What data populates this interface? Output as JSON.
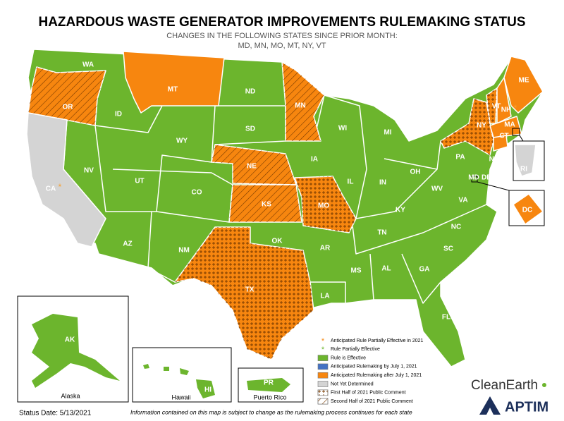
{
  "title": "HAZARDOUS WASTE GENERATOR IMPROVEMENTS RULEMAKING STATUS",
  "subtitle": [
    "CHANGES IN THE FOLLOWING STATES SINCE PRIOR MONTH:",
    "MD, MN, MO, MT, NY, VT"
  ],
  "states": [
    {
      "label": "WA",
      "color": "#6cb52d"
    },
    {
      "label": "OR",
      "color": "#f7860f",
      "pattern": "hatch"
    },
    {
      "label": "CA",
      "color": "#d4d4d4",
      "symbol": "*"
    },
    {
      "label": "ID",
      "color": "#6cb52d"
    },
    {
      "label": "NV",
      "color": "#6cb52d"
    },
    {
      "label": "MT",
      "color": "#f7860f"
    },
    {
      "label": "WY",
      "color": "#6cb52d"
    },
    {
      "label": "UT",
      "color": "#6cb52d"
    },
    {
      "label": "AZ",
      "color": "#6cb52d"
    },
    {
      "label": "CO",
      "color": "#6cb52d"
    },
    {
      "label": "NM",
      "color": "#6cb52d"
    },
    {
      "label": "ND",
      "color": "#6cb52d"
    },
    {
      "label": "SD",
      "color": "#6cb52d"
    },
    {
      "label": "NE",
      "color": "#f7860f",
      "pattern": "hatch"
    },
    {
      "label": "KS",
      "color": "#f7860f",
      "pattern": "hatch"
    },
    {
      "label": "OK",
      "color": "#6cb52d"
    },
    {
      "label": "TX",
      "color": "#f7860f",
      "pattern": "dots"
    },
    {
      "label": "MN",
      "color": "#f7860f",
      "pattern": "hatch"
    },
    {
      "label": "IA",
      "color": "#6cb52d"
    },
    {
      "label": "MO",
      "color": "#f7860f",
      "pattern": "dots"
    },
    {
      "label": "AR",
      "color": "#6cb52d"
    },
    {
      "label": "LA",
      "color": "#6cb52d"
    },
    {
      "label": "WI",
      "color": "#6cb52d"
    },
    {
      "label": "IL",
      "color": "#6cb52d"
    },
    {
      "label": "MS",
      "color": "#6cb52d"
    },
    {
      "label": "MI",
      "color": "#6cb52d"
    },
    {
      "label": "IN",
      "color": "#6cb52d"
    },
    {
      "label": "KY",
      "color": "#6cb52d"
    },
    {
      "label": "TN",
      "color": "#6cb52d"
    },
    {
      "label": "AL",
      "color": "#6cb52d"
    },
    {
      "label": "OH",
      "color": "#6cb52d"
    },
    {
      "label": "GA",
      "color": "#6cb52d"
    },
    {
      "label": "FL",
      "color": "#6cb52d"
    },
    {
      "label": "SC",
      "color": "#6cb52d"
    },
    {
      "label": "NC",
      "color": "#6cb52d"
    },
    {
      "label": "VA",
      "color": "#6cb52d"
    },
    {
      "label": "WV",
      "color": "#6cb52d"
    },
    {
      "label": "PA",
      "color": "#6cb52d"
    },
    {
      "label": "NY",
      "color": "#f7860f",
      "pattern": "dots"
    },
    {
      "label": "VT",
      "color": "#f7860f",
      "pattern": "dots"
    },
    {
      "label": "NH",
      "color": "#f7860f",
      "symbol": "*"
    },
    {
      "label": "ME",
      "color": "#f7860f"
    },
    {
      "label": "MA",
      "color": "#f7860f"
    },
    {
      "label": "CT",
      "color": "#f7860f"
    },
    {
      "label": "RI",
      "color": "#d4d4d4"
    },
    {
      "label": "NJ",
      "color": "#6cb52d"
    },
    {
      "label": "DE",
      "color": "#6cb52d"
    },
    {
      "label": "MD",
      "color": "#6cb52d"
    },
    {
      "label": "DC",
      "color": "#f7860f"
    },
    {
      "label": "AK",
      "color": "#6cb52d"
    },
    {
      "label": "HI",
      "color": "#6cb52d"
    },
    {
      "label": "PR",
      "color": "#6cb52d"
    }
  ],
  "insets": [
    "Alaska",
    "Hawaii",
    "Puerto Rico"
  ],
  "legend": [
    {
      "label": "Anticipated Rule Partially Effective in 2021",
      "symbol": "*",
      "color": "#f7860f"
    },
    {
      "label": "Rule Partially Effective",
      "symbol": "*",
      "color": "#6cb52d"
    },
    {
      "label": "Rule is Effective",
      "color": "#6cb52d"
    },
    {
      "label": "Anticipated Rulemaking by July 1, 2021",
      "color": "#4472c4"
    },
    {
      "label": "Anticipated Rulemaking after July 1, 2021",
      "color": "#f7860f"
    },
    {
      "label": "Not Yet Determined",
      "color": "#d4d4d4"
    },
    {
      "label": "First Half of 2021 Public Comment",
      "color": "#ffffff",
      "pattern": "dots"
    },
    {
      "label": "Second Half of 2021 Public Comment",
      "color": "#ffffff",
      "pattern": "hatch"
    }
  ],
  "footer": {
    "status": "Status Date:  5/13/2021",
    "note": "Information contained on this map is subject to change as the rulemaking process continues for each state"
  },
  "logos": [
    "CleanEarth",
    "APTIM"
  ]
}
